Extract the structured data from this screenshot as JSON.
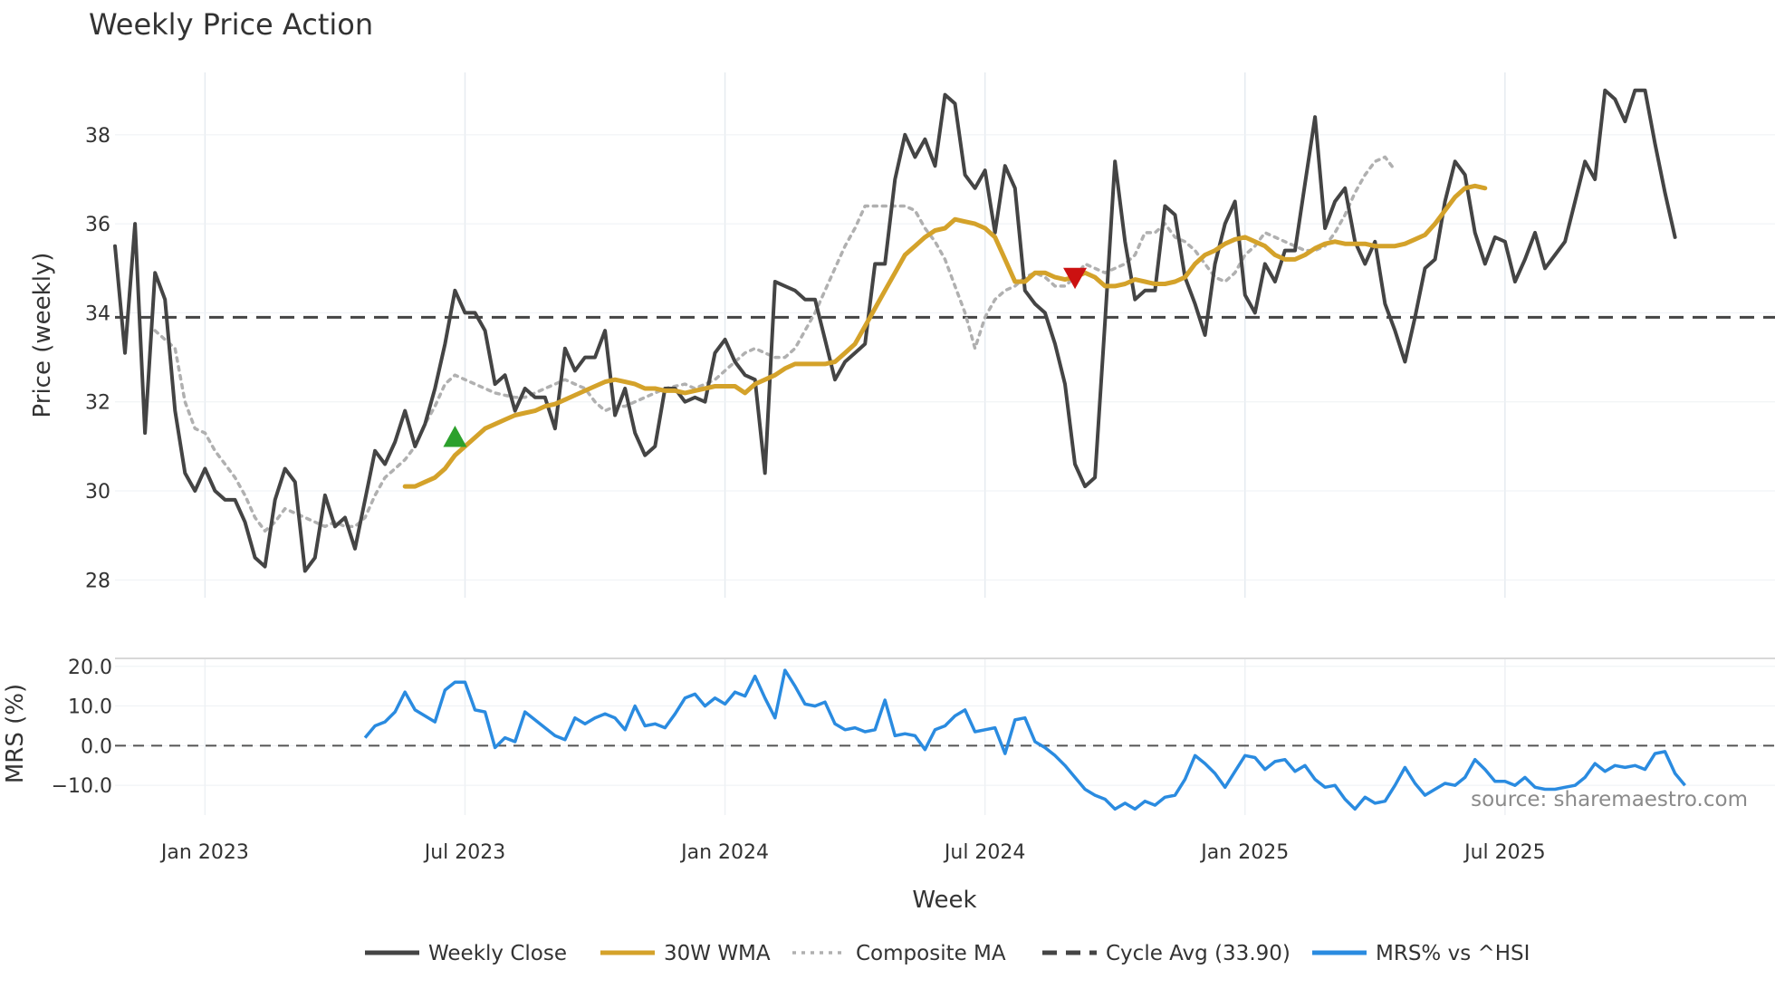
{
  "chart_data": [
    {
      "type": "line",
      "title": "Weekly Price Action",
      "xlabel": "",
      "ylabel": "Price (weekly)",
      "ylim": [
        27.6,
        39.4
      ],
      "yticks": [
        28,
        30,
        32,
        34,
        36,
        38
      ],
      "x_start_week": 0,
      "x_end_week": 166,
      "cycle_avg": 33.9,
      "series": [
        {
          "name": "Weekly Close",
          "color": "#444444",
          "start_week": 0,
          "values": [
            35.5,
            33.1,
            36.0,
            31.3,
            34.9,
            34.3,
            31.8,
            30.4,
            30.0,
            30.5,
            30.0,
            29.8,
            29.8,
            29.3,
            28.5,
            28.3,
            29.8,
            30.5,
            30.2,
            28.2,
            28.5,
            29.9,
            29.2,
            29.4,
            28.7,
            29.8,
            30.9,
            30.6,
            31.1,
            31.8,
            31.0,
            31.5,
            32.3,
            33.3,
            34.5,
            34.0,
            34.0,
            33.6,
            32.4,
            32.6,
            31.8,
            32.3,
            32.1,
            32.1,
            31.4,
            33.2,
            32.7,
            33.0,
            33.0,
            33.6,
            31.7,
            32.3,
            31.3,
            30.8,
            31.0,
            32.3,
            32.3,
            32.0,
            32.1,
            32.0,
            33.1,
            33.4,
            32.9,
            32.6,
            32.5,
            30.4,
            34.7,
            34.6,
            34.5,
            34.3,
            34.3,
            33.4,
            32.5,
            32.9,
            33.1,
            33.3,
            35.1,
            35.1,
            37.0,
            38.0,
            37.5,
            37.9,
            37.3,
            38.9,
            38.7,
            37.1,
            36.8,
            37.2,
            35.8,
            37.3,
            36.8,
            34.5,
            34.2,
            34.0,
            33.3,
            32.4,
            30.6,
            30.1,
            30.3,
            33.8,
            37.4,
            35.6,
            34.3,
            34.5,
            34.5,
            36.4,
            36.2,
            34.8,
            34.2,
            33.5,
            35.1,
            36.0,
            36.5,
            34.4,
            34.0,
            35.1,
            34.7,
            35.4,
            35.4,
            36.9,
            38.4,
            35.9,
            36.5,
            36.8,
            35.6,
            35.1,
            35.6,
            34.2,
            33.6,
            32.9,
            33.9,
            35.0,
            35.2,
            36.5,
            37.4,
            37.1,
            35.8,
            35.1,
            35.7,
            35.6,
            34.7,
            35.2,
            35.8,
            35.0,
            35.3,
            35.6,
            36.5,
            37.4,
            37.0,
            39.0,
            38.8,
            38.3,
            39.0,
            39.0,
            37.8,
            36.7,
            35.7
          ]
        },
        {
          "name": "30W WMA",
          "color": "#d4a22a",
          "start_week": 29,
          "values": [
            30.1,
            30.1,
            30.2,
            30.3,
            30.5,
            30.8,
            31.0,
            31.2,
            31.4,
            31.5,
            31.6,
            31.7,
            31.75,
            31.8,
            31.9,
            31.95,
            32.05,
            32.15,
            32.25,
            32.35,
            32.45,
            32.5,
            32.45,
            32.4,
            32.3,
            32.3,
            32.25,
            32.25,
            32.2,
            32.25,
            32.3,
            32.35,
            32.35,
            32.35,
            32.2,
            32.4,
            32.5,
            32.6,
            32.75,
            32.85,
            32.85,
            32.85,
            32.85,
            32.9,
            33.1,
            33.3,
            33.7,
            34.1,
            34.5,
            34.9,
            35.3,
            35.5,
            35.7,
            35.85,
            35.9,
            36.1,
            36.05,
            36.0,
            35.9,
            35.7,
            35.2,
            34.7,
            34.7,
            34.9,
            34.9,
            34.8,
            34.75,
            34.8,
            34.9,
            34.8,
            34.6,
            34.6,
            34.65,
            34.75,
            34.7,
            34.65,
            34.65,
            34.7,
            34.8,
            35.1,
            35.3,
            35.4,
            35.55,
            35.65,
            35.7,
            35.6,
            35.5,
            35.3,
            35.2,
            35.2,
            35.3,
            35.45,
            35.55,
            35.6,
            35.55,
            35.55,
            35.55,
            35.5,
            35.5,
            35.5,
            35.55,
            35.65,
            35.75,
            36.0,
            36.3,
            36.6,
            36.8,
            36.85,
            36.8
          ]
        },
        {
          "name": "Composite MA",
          "color": "#b0b0b0",
          "start_week": 4,
          "values": [
            33.6,
            33.4,
            33.2,
            32.0,
            31.4,
            31.3,
            30.9,
            30.6,
            30.3,
            29.9,
            29.4,
            29.1,
            29.3,
            29.6,
            29.5,
            29.4,
            29.3,
            29.2,
            29.3,
            29.2,
            29.2,
            29.4,
            29.9,
            30.3,
            30.5,
            30.7,
            31.0,
            31.5,
            31.9,
            32.4,
            32.6,
            32.5,
            32.4,
            32.3,
            32.2,
            32.15,
            32.1,
            32.1,
            32.2,
            32.3,
            32.4,
            32.5,
            32.4,
            32.3,
            32.0,
            31.8,
            31.9,
            31.9,
            32.0,
            32.1,
            32.2,
            32.3,
            32.35,
            32.4,
            32.3,
            32.4,
            32.5,
            32.7,
            32.9,
            33.1,
            33.2,
            33.1,
            33.0,
            33.0,
            33.2,
            33.6,
            34.0,
            34.5,
            35.0,
            35.5,
            35.9,
            36.4,
            36.4,
            36.4,
            36.4,
            36.4,
            36.3,
            35.9,
            35.6,
            35.2,
            34.6,
            34.0,
            33.2,
            33.9,
            34.3,
            34.5,
            34.6,
            34.8,
            34.9,
            34.8,
            34.6,
            34.6,
            34.8,
            35.1,
            35.0,
            34.9,
            35.0,
            35.1,
            35.3,
            35.8,
            35.8,
            36.0,
            35.7,
            35.6,
            35.4,
            35.1,
            34.8,
            34.7,
            34.9,
            35.3,
            35.5,
            35.8,
            35.7,
            35.6,
            35.5,
            35.4,
            35.4,
            35.5,
            35.8,
            36.2,
            36.7,
            37.1,
            37.4,
            37.5,
            37.2
          ]
        }
      ],
      "markers": [
        {
          "name": "buy-signal",
          "type": "triangle-up",
          "color": "#2ca02c",
          "week": 34,
          "value": 31.2
        },
        {
          "name": "sell-signal",
          "type": "triangle-down",
          "color": "#cc1111",
          "week": 96,
          "value": 34.8
        }
      ]
    },
    {
      "type": "line",
      "title": "",
      "xlabel": "Week",
      "ylabel": "MRS (%)",
      "ylim": [
        -17.5,
        22.0
      ],
      "yticks": [
        "20.0",
        "10.0",
        "0.0",
        "−10.0"
      ],
      "ytick_values": [
        20,
        10,
        0,
        -10
      ],
      "x_ticks": [
        {
          "label": "Jan 2023",
          "week": 9
        },
        {
          "label": "Jul 2023",
          "week": 35
        },
        {
          "label": "Jan 2024",
          "week": 61
        },
        {
          "label": "Jul 2024",
          "week": 87
        },
        {
          "label": "Jan 2025",
          "week": 113
        },
        {
          "label": "Jul 2025",
          "week": 139
        }
      ],
      "series": [
        {
          "name": "MRS% vs ^HSI",
          "color": "#2a8be0",
          "start_week": 25,
          "values": [
            2.0,
            5.0,
            6.0,
            8.5,
            13.5,
            9.0,
            7.5,
            6.0,
            14.0,
            16.0,
            16.0,
            9.0,
            8.5,
            -0.5,
            2.0,
            1.0,
            8.5,
            6.5,
            4.5,
            2.5,
            1.5,
            7.0,
            5.5,
            7.0,
            8.0,
            7.0,
            4.0,
            10.0,
            5.0,
            5.5,
            4.5,
            8.0,
            12.0,
            13.0,
            10.0,
            12.0,
            10.5,
            13.5,
            12.5,
            17.5,
            12.0,
            7.0,
            19.0,
            15.0,
            10.5,
            10.0,
            11.0,
            5.5,
            4.0,
            4.5,
            3.5,
            4.0,
            11.5,
            2.5,
            3.0,
            2.5,
            -1.0,
            4.0,
            5.0,
            7.5,
            9.0,
            3.5,
            4.0,
            4.5,
            -2.0,
            6.5,
            7.0,
            1.0,
            -0.5,
            -2.5,
            -5.0,
            -8.0,
            -11.0,
            -12.5,
            -13.5,
            -16.0,
            -14.5,
            -16.0,
            -14.0,
            -15.0,
            -13.0,
            -12.5,
            -8.5,
            -2.5,
            -4.5,
            -7.0,
            -10.5,
            -6.5,
            -2.5,
            -3.0,
            -6.0,
            -4.0,
            -3.5,
            -6.5,
            -5.0,
            -8.5,
            -10.5,
            -10.0,
            -13.5,
            -16.0,
            -13.0,
            -14.5,
            -14.0,
            -10.0,
            -5.5,
            -9.5,
            -12.5,
            -11.0,
            -9.5,
            -10.0,
            -8.0,
            -3.5,
            -6.0,
            -9.0,
            -9.0,
            -10.0,
            -8.0,
            -10.5,
            -11.0,
            -11.0,
            -10.5,
            -10.0,
            -8.0,
            -4.5,
            -6.5,
            -5.0,
            -5.5,
            -5.0,
            -6.0,
            -2.0,
            -1.5,
            -7.0,
            -10.0
          ]
        }
      ],
      "zero_line": 0
    }
  ],
  "legend": [
    {
      "label": "Weekly Close",
      "color": "#444444",
      "style": "solid"
    },
    {
      "label": "30W WMA",
      "color": "#d4a22a",
      "style": "solid"
    },
    {
      "label": "Composite MA",
      "color": "#b0b0b0",
      "style": "dotted"
    },
    {
      "label": "Cycle Avg (33.90)",
      "color": "#444444",
      "style": "dashed"
    },
    {
      "label": "MRS% vs ^HSI",
      "color": "#2a8be0",
      "style": "solid"
    }
  ],
  "source_text": "source: sharemaestro.com"
}
